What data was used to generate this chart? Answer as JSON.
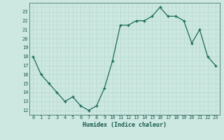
{
  "x": [
    0,
    1,
    2,
    3,
    4,
    5,
    6,
    7,
    8,
    9,
    10,
    11,
    12,
    13,
    14,
    15,
    16,
    17,
    18,
    19,
    20,
    21,
    22,
    23
  ],
  "y": [
    18,
    16,
    15,
    14,
    13,
    13.5,
    12.5,
    12,
    12.5,
    14.5,
    17.5,
    21.5,
    21.5,
    22,
    22,
    22.5,
    23.5,
    22.5,
    22.5,
    22,
    19.5,
    21,
    18,
    17
  ],
  "line_color": "#1a6b5a",
  "marker_color": "#1a6b5a",
  "bg_color": "#cce8e0",
  "grid_major_color": "#b8d8ce",
  "xlabel": "Humidex (Indice chaleur)",
  "xlim": [
    -0.5,
    23.5
  ],
  "ylim": [
    11.5,
    24
  ],
  "yticks": [
    12,
    13,
    14,
    15,
    16,
    17,
    18,
    19,
    20,
    21,
    22,
    23
  ],
  "xticks": [
    0,
    1,
    2,
    3,
    4,
    5,
    6,
    7,
    8,
    9,
    10,
    11,
    12,
    13,
    14,
    15,
    16,
    17,
    18,
    19,
    20,
    21,
    22,
    23
  ]
}
